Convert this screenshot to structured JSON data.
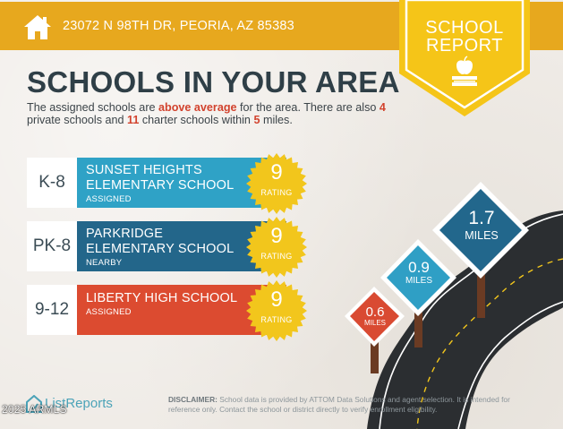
{
  "header": {
    "address": "23072 N 98TH DR, PEORIA, AZ 85383",
    "home_icon": "house-icon",
    "badge": {
      "line1": "SCHOOL",
      "line2": "REPORT",
      "icon": "apple-on-books-icon"
    }
  },
  "headline": "SCHOOLS IN YOUR AREA",
  "intro": {
    "part1": "The assigned schools are ",
    "highlight1": "above average",
    "part2": " for the area. There are also ",
    "highlight2": "4",
    "part3": " private schools and ",
    "highlight3": "11",
    "part4": " charter schools within ",
    "highlight4": "5",
    "part5": " miles."
  },
  "colors": {
    "header_bar": "#e7a81e",
    "headline": "#2f3f47",
    "highlight": "#d2432e",
    "seal": "#f2c61c",
    "sign_red": "#d94a32",
    "sign_blue": "#2f9fc5",
    "sign_dark_blue": "#22678c"
  },
  "schools": [
    {
      "grade": "K-8",
      "name_line1": "SUNSET HEIGHTS",
      "name_line2": "ELEMENTARY SCHOOL",
      "type": "ASSIGNED",
      "rating": "9",
      "rating_label": "RATING",
      "color": "#2fa2c6"
    },
    {
      "grade": "PK-8",
      "name_line1": "PARKRIDGE",
      "name_line2": "ELEMENTARY SCHOOL",
      "type": "NEARBY",
      "rating": "9",
      "rating_label": "RATING",
      "color": "#23668a"
    },
    {
      "grade": "9-12",
      "name_line1": "LIBERTY HIGH SCHOOL",
      "name_line2": "",
      "type": "ASSIGNED",
      "rating": "9",
      "rating_label": "RATING",
      "color": "#dc4b30"
    }
  ],
  "distance_signs": [
    {
      "value": "0.6",
      "unit": "MILES",
      "color": "#d94a32"
    },
    {
      "value": "0.9",
      "unit": "MILES",
      "color": "#2f9fc5"
    },
    {
      "value": "1.7",
      "unit": "MILES",
      "color": "#22678c"
    }
  ],
  "footer": {
    "logo_text": "ListReports",
    "logo_icon": "listreports-house-icon",
    "watermark": "2025 ARMLS",
    "disclaimer_lead": "DISCLAIMER:",
    "disclaimer_text": " School data is provided by ATTOM Data Solutions and agent selection. It is intended for reference only. Contact the school or district directly to verify enrollment eligibility."
  }
}
